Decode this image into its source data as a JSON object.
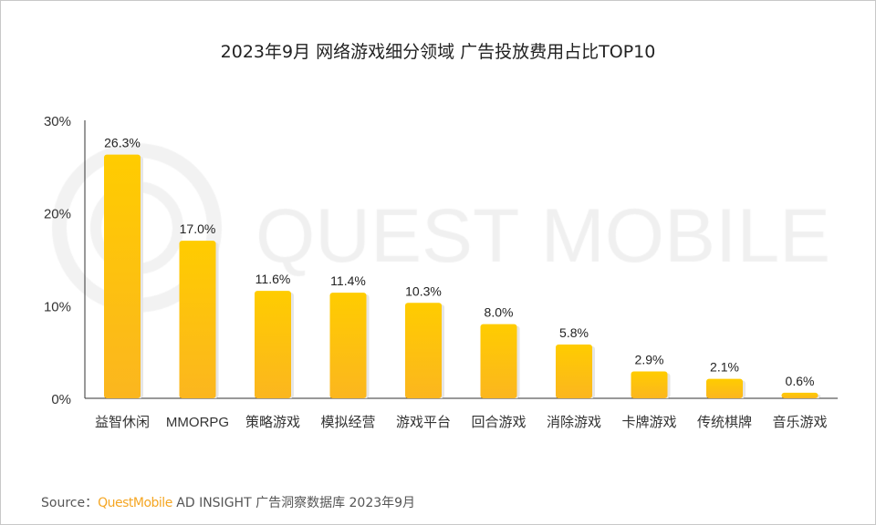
{
  "chart_data": {
    "type": "bar",
    "title": "2023年9月 网络游戏细分领域 广告投放费用占比TOP10",
    "categories": [
      "益智休闲",
      "MMORPG",
      "策略游戏",
      "模拟经营",
      "游戏平台",
      "回合游戏",
      "消除游戏",
      "卡牌游戏",
      "传统棋牌",
      "音乐游戏"
    ],
    "values": [
      26.3,
      17.0,
      11.6,
      11.4,
      10.3,
      8.0,
      5.8,
      2.9,
      2.1,
      0.6
    ],
    "data_labels": [
      "26.3%",
      "17.0%",
      "11.6%",
      "11.4%",
      "10.3%",
      "8.0%",
      "5.8%",
      "2.9%",
      "2.1%",
      "0.6%"
    ],
    "yticks": [
      "0%",
      "10%",
      "20%",
      "30%"
    ],
    "ylim": [
      0,
      30
    ],
    "grid": false,
    "bar_color_top": "#ffcc00",
    "bar_color_bottom": "#fbb61f"
  },
  "watermark": "QUEST MOBILE",
  "source": {
    "label": "Source：",
    "brand": "QuestMobile",
    "text": " AD INSIGHT 广告洞察数据库 2023年9月"
  }
}
